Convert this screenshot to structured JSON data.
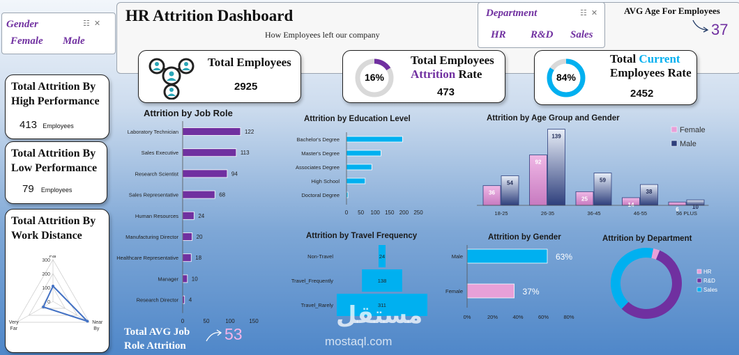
{
  "gender_slicer": {
    "title": "Gender",
    "items": [
      "Female",
      "Male"
    ]
  },
  "header": {
    "title": "HR Attrition Dashboard",
    "subtitle": "How Employees left our company"
  },
  "department_slicer": {
    "title": "Department",
    "items": [
      "HR",
      "R&D",
      "Sales"
    ]
  },
  "avg_age": {
    "label": "AVG Age For Employees",
    "value": "37"
  },
  "kpis": {
    "total_employees": {
      "title": "Total Employees",
      "value": "2925"
    },
    "attrition_rate": {
      "title_line1": "Total Employees",
      "title_word1": "Attrition",
      "title_word2": "Rate",
      "value": "473",
      "percent_label": "16%",
      "percent": 16
    },
    "current_rate": {
      "title_word1": "Total",
      "title_word2": "Current",
      "title_line2": "Employees Rate",
      "value": "2452",
      "percent_label": "84%",
      "percent": 84
    }
  },
  "left_cards": {
    "high_perf": {
      "title": "Total Attrition By High Performance",
      "value": "413",
      "unit": "Employees"
    },
    "low_perf": {
      "title": "Total Attrition By Low Performance",
      "value": "79",
      "unit": "Employees"
    },
    "distance": {
      "title": "Total Attrition By Work Distance"
    }
  },
  "avg_job_role": {
    "label": "Total AVG Job Role Attrition",
    "value": "53"
  },
  "colors": {
    "purple": "#7030a0",
    "cyan": "#00b0f0",
    "pink": "#e8a0d8",
    "navy": "#2e3f7c",
    "blue": "#4472c4"
  },
  "watermark": {
    "arabic": "مستقل",
    "latin": "mostaql.com"
  },
  "chart_data": [
    {
      "type": "bar",
      "orientation": "horizontal",
      "title": "Attrition by Job Role",
      "categories": [
        "Laboratory Technician",
        "Sales Executive",
        "Research Scientist",
        "Sales Representative",
        "Human Resources",
        "Manufacturing Director",
        "Healthcare Representative",
        "Manager",
        "Research Director"
      ],
      "values": [
        122,
        113,
        94,
        68,
        24,
        20,
        18,
        10,
        4
      ],
      "xlim": [
        0,
        150
      ],
      "xticks": [
        "0",
        "50",
        "100",
        "150"
      ]
    },
    {
      "type": "bar",
      "orientation": "horizontal",
      "title": "Attrition by Education Level",
      "categories": [
        "Bachelor's Degree",
        "Master's Degree",
        "Associates Degree",
        "High School",
        "Doctoral Degree"
      ],
      "values": [
        195,
        120,
        88,
        65,
        5
      ],
      "xlim": [
        0,
        250
      ],
      "xticks": [
        "0",
        "50",
        "100",
        "150",
        "200",
        "250"
      ]
    },
    {
      "type": "bar",
      "title": "Attrition by Age Group and Gender",
      "categories": [
        "18-25",
        "26-35",
        "36-45",
        "46-55",
        "56 PLUS"
      ],
      "series": [
        {
          "name": "Female",
          "values": [
            36,
            92,
            25,
            14,
            6
          ]
        },
        {
          "name": "Male",
          "values": [
            54,
            139,
            59,
            38,
            10
          ]
        }
      ],
      "ylim": [
        0,
        150
      ],
      "legend": "top-right"
    },
    {
      "type": "bar",
      "orientation": "horizontal",
      "title": "Attrition by Travel Frequency",
      "categories": [
        "Non-Travel",
        "Travel_Frequently",
        "Travel_Rarely"
      ],
      "values": [
        24,
        138,
        311
      ],
      "xlim": [
        0,
        311
      ]
    },
    {
      "type": "bar",
      "orientation": "horizontal",
      "title": "Attrition by Gender",
      "categories": [
        "Male",
        "Female"
      ],
      "values": [
        63,
        37
      ],
      "labels": [
        "63%",
        "37%"
      ],
      "xlim": [
        0,
        80
      ],
      "xticks": [
        "0%",
        "20%",
        "40%",
        "60%",
        "80%"
      ]
    },
    {
      "type": "pie",
      "donut": true,
      "title": "Attrition by Department",
      "categories": [
        "HR",
        "R&D",
        "Sales"
      ],
      "values": [
        3,
        56,
        41
      ],
      "legend": "right"
    },
    {
      "type": "radar",
      "categories": [
        "Far",
        "Near",
        "Very Far"
      ],
      "values": [
        110,
        285,
        80
      ],
      "ylim": [
        0,
        300
      ],
      "ticks": [
        "0",
        "100",
        "200",
        "300"
      ],
      "labels": [
        "Far",
        "Near",
        "By",
        "Very",
        "Far"
      ]
    }
  ]
}
